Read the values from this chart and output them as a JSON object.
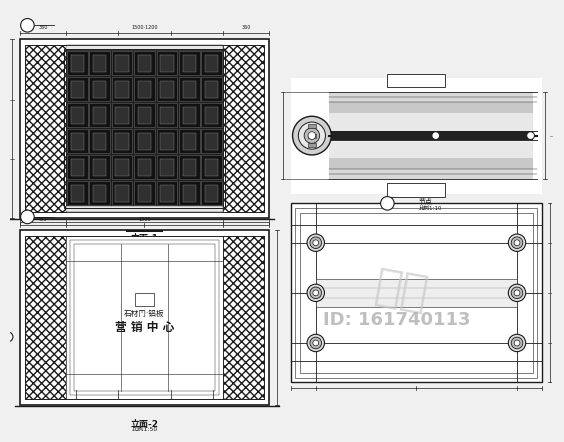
{
  "bg_color": "#f0f0f0",
  "line_color": "#1a1a1a",
  "mid_line": "#555555",
  "light_line": "#999999",
  "watermark_text": "知乎",
  "id_text": "ID: 161740113",
  "room_label1": "石材门·铝板",
  "room_label2": "营 销 中 心",
  "title1": "立面-1",
  "title1_sub": "比例1:50",
  "title2": "立面-2",
  "title2_sub": "比例1:50",
  "title3": "节点",
  "title3_sub": "比例1:10",
  "panel_bg": "#ffffff"
}
